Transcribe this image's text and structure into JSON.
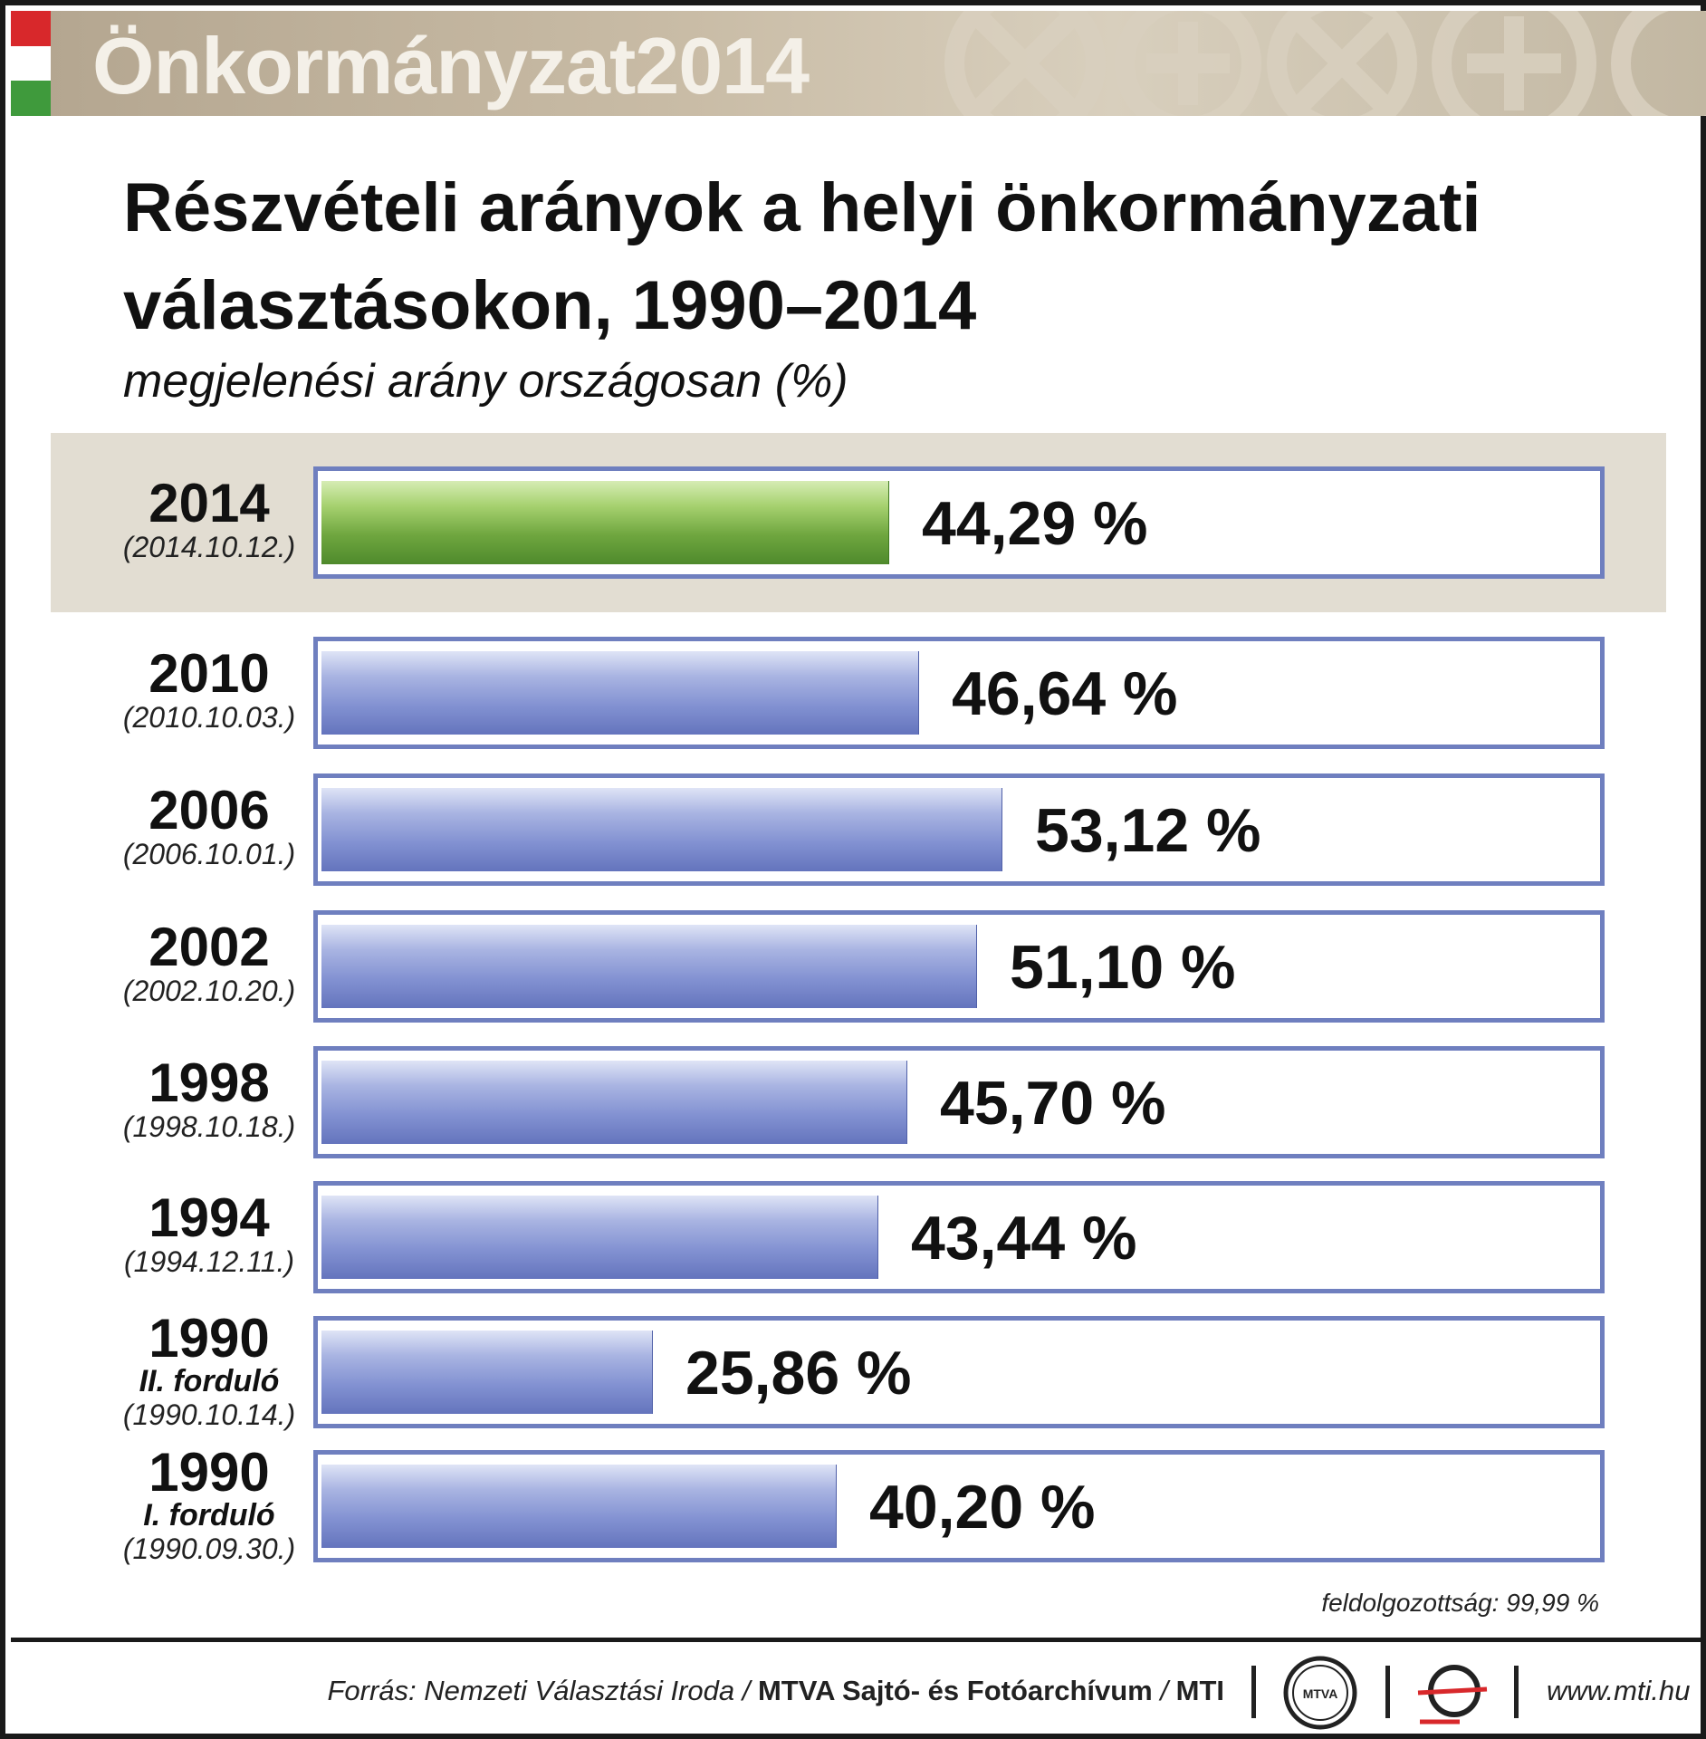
{
  "header": {
    "banner_title": "Önkormányzat2014"
  },
  "chart_data": {
    "type": "bar",
    "orientation": "horizontal",
    "title_line1": "Részvételi arányok a helyi önkormányzati",
    "title_line2": "választásokon, 1990–2014",
    "subtitle": "megjelenési arány országosan (%)",
    "xlim": [
      0,
      100
    ],
    "grid": false,
    "legend": "none",
    "highlight_color": "#6fa63f",
    "bar_color": "#8392d2",
    "series": [
      {
        "values": [
          {
            "year": "2014",
            "round": "",
            "date": "(2014.10.12.)",
            "value": 44.29,
            "value_label": "44,29 %",
            "current": true
          },
          {
            "year": "2010",
            "round": "",
            "date": "(2010.10.03.)",
            "value": 46.64,
            "value_label": "46,64 %",
            "current": false
          },
          {
            "year": "2006",
            "round": "",
            "date": "(2006.10.01.)",
            "value": 53.12,
            "value_label": "53,12 %",
            "current": false
          },
          {
            "year": "2002",
            "round": "",
            "date": "(2002.10.20.)",
            "value": 51.1,
            "value_label": "51,10 %",
            "current": false
          },
          {
            "year": "1998",
            "round": "",
            "date": "(1998.10.18.)",
            "value": 45.7,
            "value_label": "45,70 %",
            "current": false
          },
          {
            "year": "1994",
            "round": "",
            "date": "(1994.12.11.)",
            "value": 43.44,
            "value_label": "43,44 %",
            "current": false
          },
          {
            "year": "1990",
            "round": "II. forduló",
            "date": "(1990.10.14.)",
            "value": 25.86,
            "value_label": "25,86 %",
            "current": false
          },
          {
            "year": "1990",
            "round": "I. forduló",
            "date": "(1990.09.30.)",
            "value": 40.2,
            "value_label": "40,20 %",
            "current": false
          }
        ]
      }
    ],
    "note": "feldolgozottság: 99,99 %"
  },
  "footer": {
    "source_italic": "Forrás: Nemzeti Választási Iroda /",
    "source_bold": "MTVA Sajtó- és Fotóarchívum",
    "source_slash": "/",
    "source_mti": "MTI",
    "mtva_logo_text": "MTVA",
    "website": "www.mti.hu"
  }
}
